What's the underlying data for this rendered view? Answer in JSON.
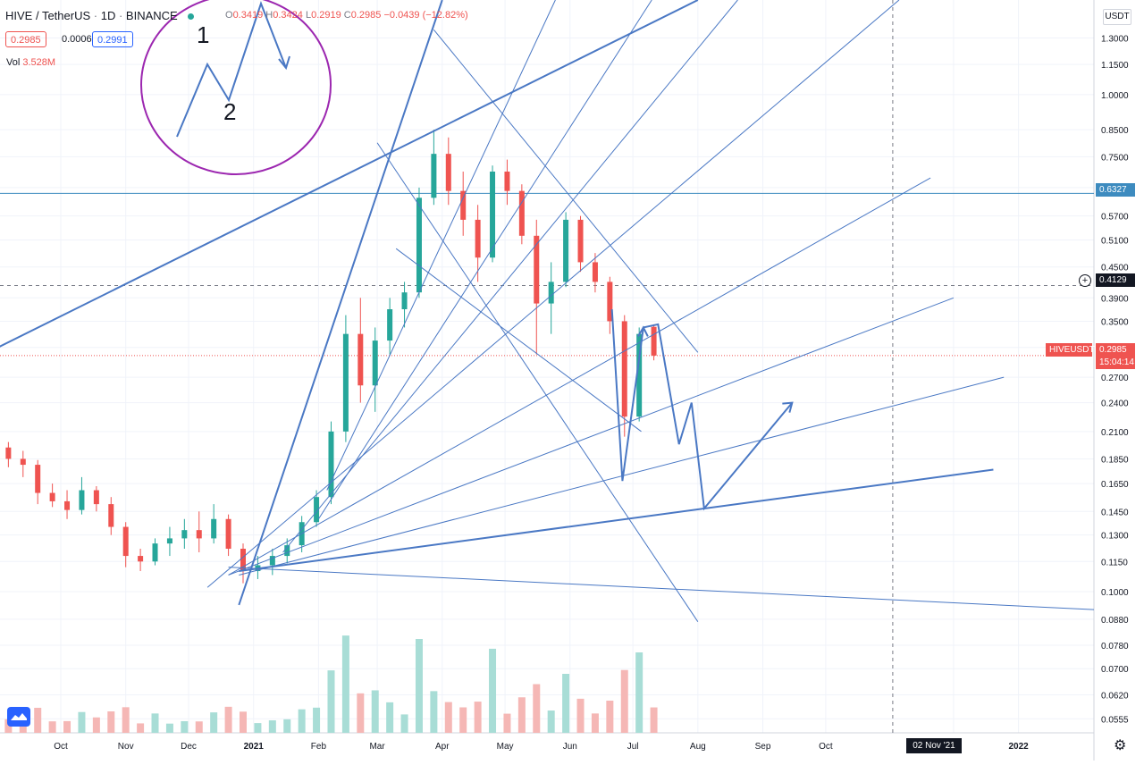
{
  "header": {
    "symbol": "HIVE / TetherUS",
    "interval": "1D",
    "exchange": "BINANCE",
    "ohlc": {
      "o_label": "O",
      "o": "0.3419",
      "h_label": "H",
      "h": "0.3424",
      "l_label": "L",
      "l": "0.2919",
      "c_label": "C",
      "c": "0.2985",
      "change": "−0.0439 (−12.82%)"
    },
    "bid": "0.2985",
    "spread": "0.0006",
    "ask": "0.2991",
    "vol_label": "Vol",
    "vol_value": "3.528M"
  },
  "axis": {
    "currency": "USDT",
    "y_ticks": [
      "1.3000",
      "1.1500",
      "1.0000",
      "0.8500",
      "0.7500",
      "0.6500",
      "0.5700",
      "0.5100",
      "0.4500",
      "0.3900",
      "0.3500",
      "0.3100",
      "0.2700",
      "0.2400",
      "0.2100",
      "0.1850",
      "0.1650",
      "0.1450",
      "0.1300",
      "0.1150",
      "0.1000",
      "0.0880",
      "0.0780",
      "0.0700",
      "0.0620",
      "0.0555"
    ],
    "x_ticks": [
      "Oct",
      "Nov",
      "Dec",
      "2021",
      "Feb",
      "Mar",
      "Apr",
      "May",
      "Jun",
      "Jul",
      "Aug",
      "Sep",
      "Oct",
      "Dec",
      "2022"
    ],
    "cursor_date": "02 Nov '21",
    "hline_price": "0.6327",
    "dashed_price": "0.4129",
    "last_symbol": "HIVEUSDT",
    "last_price": "0.2985",
    "countdown": "15:04:14"
  },
  "annotations": {
    "label1": "1",
    "label2": "2"
  },
  "colors": {
    "up": "#26a69a",
    "down": "#ef5350",
    "drawing": "#4a78c4",
    "ellipse": "#9c27b0",
    "hline": "#3d8bbf"
  },
  "chart_data": {
    "type": "candlestick",
    "title": "HIVE / TetherUS",
    "scale": "log",
    "ylim": [
      0.052,
      1.55
    ],
    "x_range": [
      "2020-09-02",
      "2022-02-06"
    ],
    "ohlc": [
      [
        "2020-09-06",
        0.195,
        0.2,
        0.178,
        0.185
      ],
      [
        "2020-09-13",
        0.185,
        0.192,
        0.17,
        0.18
      ],
      [
        "2020-09-20",
        0.18,
        0.184,
        0.15,
        0.158
      ],
      [
        "2020-09-27",
        0.158,
        0.165,
        0.148,
        0.152
      ],
      [
        "2020-10-04",
        0.152,
        0.16,
        0.14,
        0.146
      ],
      [
        "2020-10-11",
        0.146,
        0.17,
        0.143,
        0.16
      ],
      [
        "2020-10-18",
        0.16,
        0.163,
        0.145,
        0.15
      ],
      [
        "2020-10-25",
        0.15,
        0.155,
        0.13,
        0.135
      ],
      [
        "2020-11-01",
        0.135,
        0.138,
        0.112,
        0.118
      ],
      [
        "2020-11-08",
        0.118,
        0.122,
        0.11,
        0.115
      ],
      [
        "2020-11-15",
        0.115,
        0.128,
        0.113,
        0.125
      ],
      [
        "2020-11-22",
        0.125,
        0.135,
        0.118,
        0.128
      ],
      [
        "2020-11-29",
        0.128,
        0.14,
        0.122,
        0.133
      ],
      [
        "2020-12-06",
        0.133,
        0.145,
        0.12,
        0.128
      ],
      [
        "2020-12-13",
        0.128,
        0.15,
        0.125,
        0.14
      ],
      [
        "2020-12-20",
        0.14,
        0.143,
        0.118,
        0.122
      ],
      [
        "2020-12-27",
        0.122,
        0.125,
        0.104,
        0.11
      ],
      [
        "2021-01-03",
        0.11,
        0.118,
        0.106,
        0.113
      ],
      [
        "2021-01-10",
        0.113,
        0.122,
        0.108,
        0.118
      ],
      [
        "2021-01-17",
        0.118,
        0.128,
        0.114,
        0.124
      ],
      [
        "2021-01-24",
        0.124,
        0.142,
        0.12,
        0.138
      ],
      [
        "2021-01-31",
        0.138,
        0.16,
        0.135,
        0.155
      ],
      [
        "2021-02-07",
        0.155,
        0.22,
        0.15,
        0.21
      ],
      [
        "2021-02-14",
        0.21,
        0.36,
        0.2,
        0.33
      ],
      [
        "2021-02-21",
        0.33,
        0.39,
        0.24,
        0.26
      ],
      [
        "2021-02-28",
        0.26,
        0.34,
        0.23,
        0.32
      ],
      [
        "2021-03-07",
        0.32,
        0.39,
        0.3,
        0.37
      ],
      [
        "2021-03-14",
        0.37,
        0.42,
        0.34,
        0.4
      ],
      [
        "2021-03-21",
        0.4,
        0.65,
        0.39,
        0.62
      ],
      [
        "2021-03-28",
        0.62,
        0.85,
        0.6,
        0.76
      ],
      [
        "2021-04-04",
        0.76,
        0.82,
        0.6,
        0.64
      ],
      [
        "2021-04-11",
        0.64,
        0.7,
        0.52,
        0.56
      ],
      [
        "2021-04-18",
        0.56,
        0.6,
        0.42,
        0.47
      ],
      [
        "2021-04-25",
        0.47,
        0.72,
        0.46,
        0.7
      ],
      [
        "2021-05-02",
        0.7,
        0.74,
        0.6,
        0.64
      ],
      [
        "2021-05-09",
        0.64,
        0.66,
        0.5,
        0.52
      ],
      [
        "2021-05-16",
        0.52,
        0.56,
        0.3,
        0.38
      ],
      [
        "2021-05-23",
        0.38,
        0.46,
        0.33,
        0.42
      ],
      [
        "2021-05-30",
        0.42,
        0.58,
        0.41,
        0.56
      ],
      [
        "2021-06-06",
        0.56,
        0.57,
        0.44,
        0.46
      ],
      [
        "2021-06-13",
        0.46,
        0.48,
        0.4,
        0.42
      ],
      [
        "2021-06-20",
        0.42,
        0.43,
        0.33,
        0.35
      ],
      [
        "2021-06-27",
        0.35,
        0.36,
        0.205,
        0.225
      ],
      [
        "2021-07-04",
        0.225,
        0.34,
        0.22,
        0.33
      ],
      [
        "2021-07-11",
        0.341,
        0.345,
        0.292,
        0.2985
      ]
    ],
    "volume_note": "volume bars drawn at bottom"
  }
}
